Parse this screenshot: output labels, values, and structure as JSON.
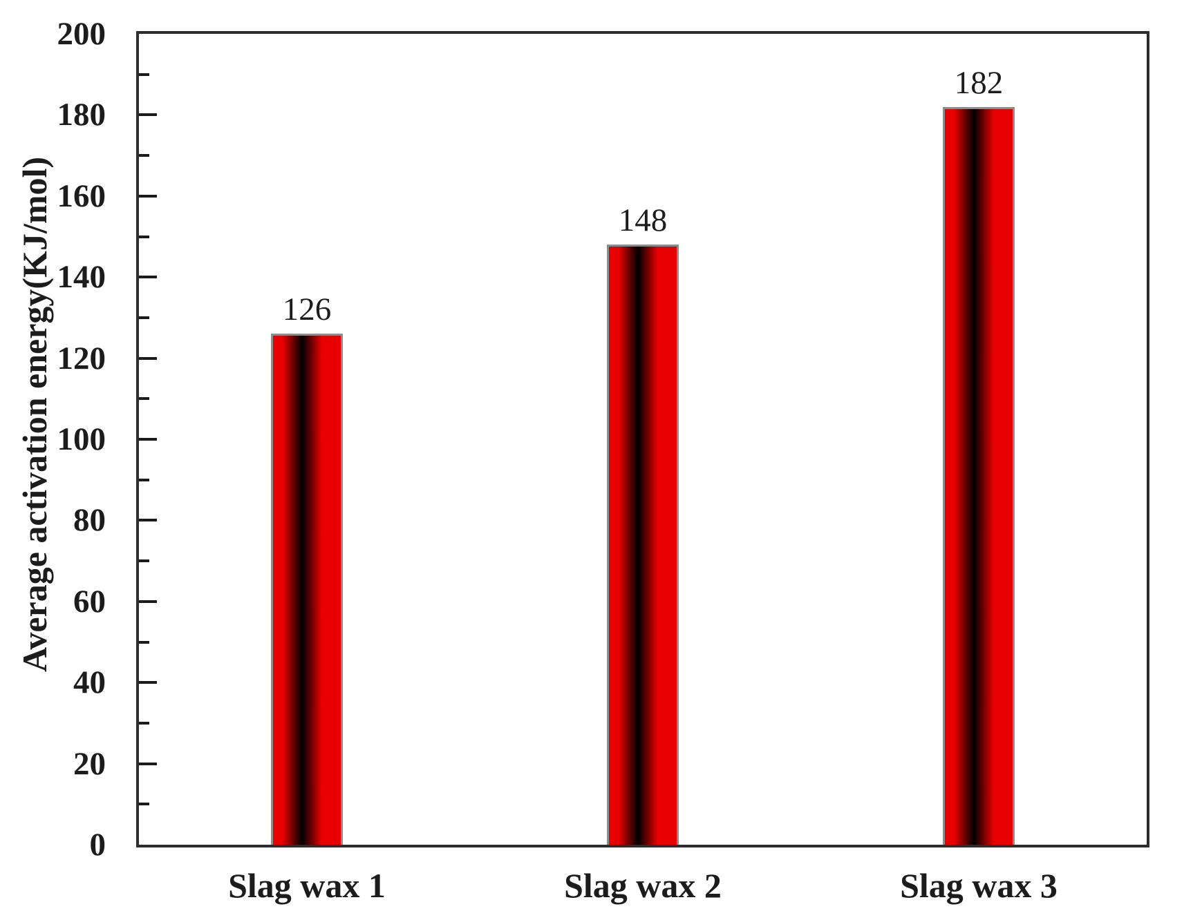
{
  "chart_data": {
    "type": "bar",
    "categories": [
      "Slag wax 1",
      "Slag wax 2",
      "Slag wax 3"
    ],
    "values": [
      126,
      148,
      182
    ],
    "bar_value_labels": [
      "126",
      "148",
      "182"
    ],
    "title": "",
    "xlabel": "",
    "ylabel": "Average activation energy(KJ/mol)",
    "ylim": [
      0,
      200
    ],
    "ytick_major_step": 20,
    "ytick_minor_step": 10,
    "grid": false,
    "legend": false,
    "colors": {
      "bar_red": "#e80000",
      "bar_dark_band": "#000000",
      "bar_border": "#8d8d8d",
      "axis_line": "#2d2d2d",
      "tick_mark": "#1a1a1a",
      "text": "#1c1c1c",
      "background": "#ffffff"
    }
  }
}
